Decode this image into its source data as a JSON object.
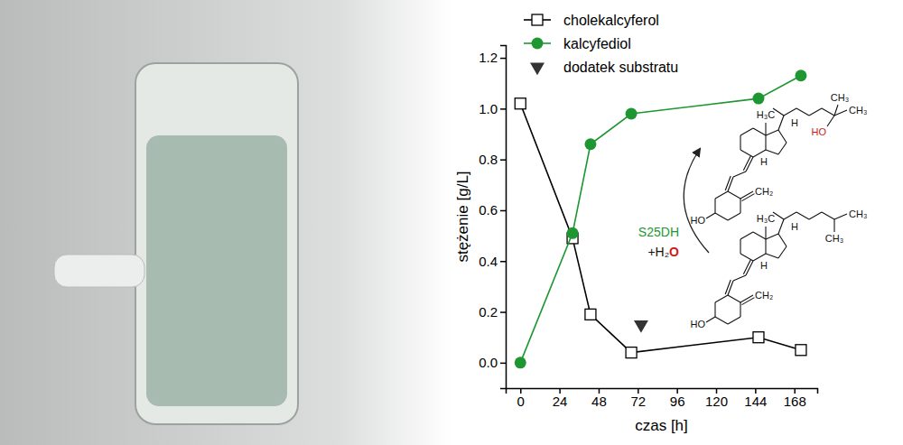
{
  "chart_data": {
    "type": "line",
    "xlabel": "czas [h]",
    "ylabel": "stężenie [g/L]",
    "xlim": [
      -9,
      182
    ],
    "ylim": [
      -0.1,
      1.25
    ],
    "xticks": [
      0,
      24,
      48,
      72,
      96,
      120,
      144,
      168
    ],
    "yticks": [
      {
        "value": 0,
        "label": "0.0"
      },
      0.2,
      0.4,
      0.6,
      0.8,
      {
        "value": 1,
        "label": "1.0"
      },
      1.2
    ],
    "series": [
      {
        "name": "cholekalcyferol",
        "type": "line",
        "color": "#000000",
        "marker": "square",
        "x": [
          0,
          32,
          43,
          68,
          146,
          172
        ],
        "values": [
          1.02,
          0.49,
          0.19,
          0.04,
          0.1,
          0.05
        ]
      },
      {
        "name": "kalcyfediol",
        "type": "line",
        "color": "#1e9632",
        "marker": "circle",
        "x": [
          0,
          32,
          43,
          68,
          146,
          172
        ],
        "values": [
          0,
          0.51,
          0.86,
          0.98,
          1.04,
          1.13
        ]
      },
      {
        "name": "dodatek substratu",
        "type": "scatter",
        "color": "#333333",
        "marker": "triangle",
        "x": [
          74
        ],
        "values": [
          0.15
        ]
      }
    ],
    "annotations": {
      "enzyme": "S25DH",
      "reagent": "+H₂O",
      "product_labels": [
        "H₃C",
        "H",
        "H",
        "CH₃",
        "CH₃",
        "HO",
        "CH₂",
        "HO"
      ],
      "substrate_labels": [
        "H₃C",
        "H",
        "H",
        "CH₃",
        "CH₃",
        "CH₂",
        "HO"
      ]
    }
  }
}
